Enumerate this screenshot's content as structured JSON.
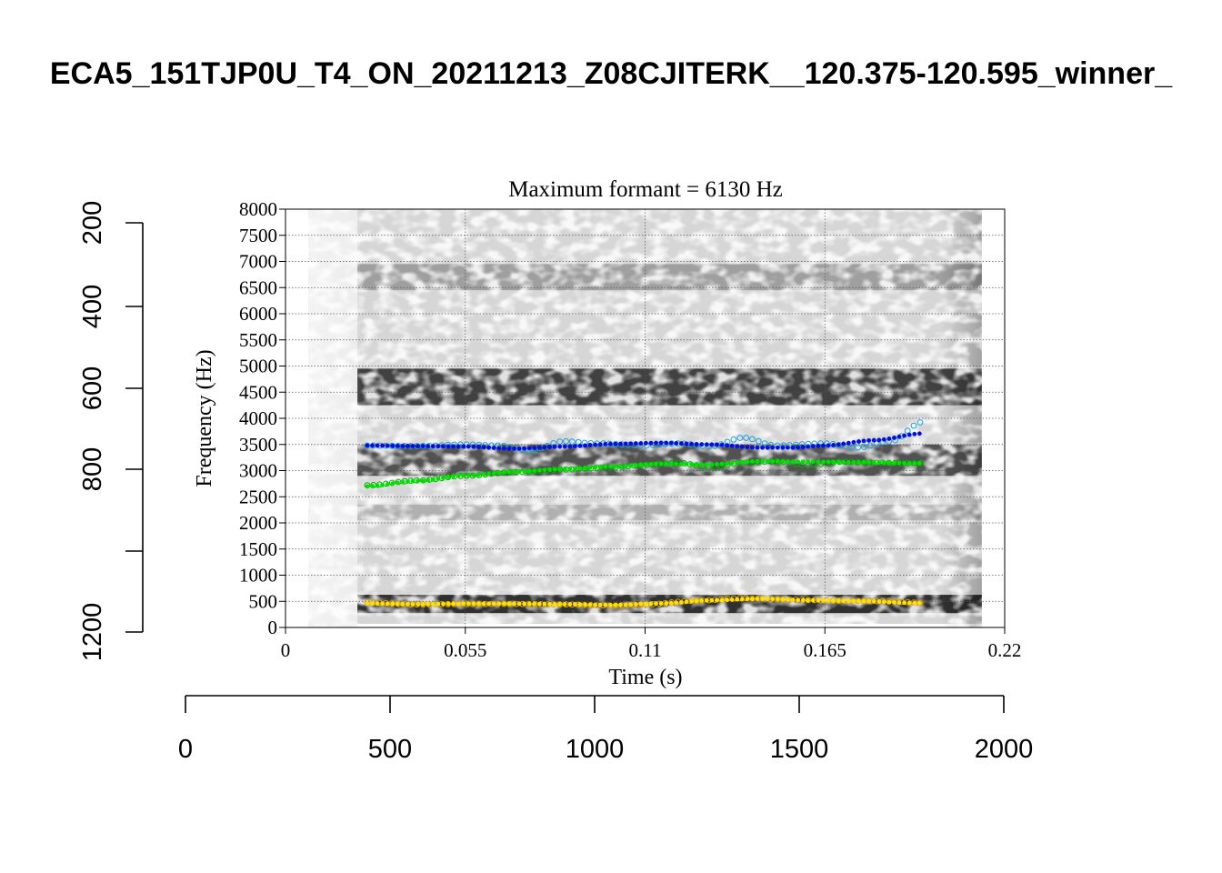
{
  "figure": {
    "title": "ECA5_151TJP0U_T4_ON_20211213_Z08CJITERK__120.375-120.595_winner_"
  },
  "outer_axes": {
    "y_ticks": [
      "200",
      "400",
      "600",
      "800",
      "1200"
    ],
    "x_ticks": [
      "0",
      "500",
      "1000",
      "1500",
      "2000"
    ]
  },
  "chart_data": {
    "type": "scatter",
    "title": "Maximum formant = 6130 Hz",
    "xlabel": "Time (s)",
    "ylabel": "Frequency (Hz)",
    "xlim": [
      0,
      0.22
    ],
    "ylim": [
      0,
      8000
    ],
    "x_ticks": [
      "0",
      "0.055",
      "0.11",
      "0.165",
      "0.22"
    ],
    "y_ticks": [
      "0",
      "500",
      "1000",
      "1500",
      "2000",
      "2500",
      "3000",
      "3500",
      "4000",
      "4500",
      "5000",
      "5500",
      "6000",
      "6500",
      "7000",
      "7500",
      "8000"
    ],
    "grid": true,
    "background": "spectrogram",
    "spectrogram_bands": [
      {
        "center": 4600,
        "width": 700,
        "strength": 0.85
      },
      {
        "center": 3200,
        "width": 600,
        "strength": 0.75
      },
      {
        "center": 450,
        "width": 350,
        "strength": 0.95
      },
      {
        "center": 6700,
        "width": 500,
        "strength": 0.3
      },
      {
        "center": 2200,
        "width": 300,
        "strength": 0.2
      }
    ],
    "series": [
      {
        "color": "#1ea0d8",
        "marker": "open-circle",
        "points": [
          [
            0.025,
            3480
          ],
          [
            0.04,
            3470
          ],
          [
            0.055,
            3500
          ],
          [
            0.065,
            3480
          ],
          [
            0.075,
            3380
          ],
          [
            0.085,
            3560
          ],
          [
            0.095,
            3520
          ],
          [
            0.11,
            3480
          ],
          [
            0.12,
            3520
          ],
          [
            0.13,
            3460
          ],
          [
            0.14,
            3630
          ],
          [
            0.15,
            3480
          ],
          [
            0.165,
            3520
          ],
          [
            0.175,
            3440
          ],
          [
            0.185,
            3560
          ],
          [
            0.195,
            3930
          ]
        ]
      },
      {
        "color": "#0010e0",
        "marker": "filled-dot",
        "points": [
          [
            0.025,
            3480
          ],
          [
            0.04,
            3470
          ],
          [
            0.055,
            3460
          ],
          [
            0.07,
            3420
          ],
          [
            0.085,
            3460
          ],
          [
            0.1,
            3510
          ],
          [
            0.115,
            3530
          ],
          [
            0.13,
            3500
          ],
          [
            0.145,
            3440
          ],
          [
            0.155,
            3440
          ],
          [
            0.165,
            3480
          ],
          [
            0.18,
            3580
          ],
          [
            0.195,
            3710
          ]
        ]
      },
      {
        "color": "#00b000",
        "marker": "open-circle",
        "points": [
          [
            0.025,
            2720
          ],
          [
            0.04,
            2810
          ],
          [
            0.055,
            2900
          ],
          [
            0.07,
            2970
          ],
          [
            0.085,
            3020
          ],
          [
            0.1,
            3060
          ],
          [
            0.11,
            3110
          ],
          [
            0.12,
            3150
          ],
          [
            0.13,
            3060
          ],
          [
            0.14,
            3150
          ],
          [
            0.15,
            3180
          ],
          [
            0.16,
            3100
          ],
          [
            0.17,
            3170
          ],
          [
            0.18,
            3150
          ],
          [
            0.195,
            3140
          ]
        ]
      },
      {
        "color": "#00e000",
        "marker": "filled-dot",
        "points": [
          [
            0.025,
            2700
          ],
          [
            0.04,
            2800
          ],
          [
            0.055,
            2910
          ],
          [
            0.07,
            2980
          ],
          [
            0.085,
            3030
          ],
          [
            0.1,
            3080
          ],
          [
            0.115,
            3130
          ],
          [
            0.13,
            3120
          ],
          [
            0.145,
            3180
          ],
          [
            0.16,
            3170
          ],
          [
            0.175,
            3160
          ],
          [
            0.195,
            3140
          ]
        ]
      },
      {
        "color": "#e0a000",
        "marker": "open-circle",
        "points": [
          [
            0.025,
            480
          ],
          [
            0.04,
            440
          ],
          [
            0.055,
            450
          ],
          [
            0.07,
            450
          ],
          [
            0.085,
            440
          ],
          [
            0.1,
            420
          ],
          [
            0.11,
            440
          ],
          [
            0.125,
            510
          ],
          [
            0.14,
            560
          ],
          [
            0.155,
            530
          ],
          [
            0.17,
            510
          ],
          [
            0.185,
            500
          ],
          [
            0.195,
            470
          ]
        ]
      },
      {
        "color": "#ffe000",
        "marker": "filled-dot",
        "points": [
          [
            0.025,
            460
          ],
          [
            0.04,
            445
          ],
          [
            0.055,
            455
          ],
          [
            0.07,
            455
          ],
          [
            0.085,
            445
          ],
          [
            0.1,
            430
          ],
          [
            0.115,
            460
          ],
          [
            0.13,
            520
          ],
          [
            0.145,
            550
          ],
          [
            0.16,
            520
          ],
          [
            0.175,
            505
          ],
          [
            0.195,
            465
          ]
        ]
      }
    ]
  }
}
